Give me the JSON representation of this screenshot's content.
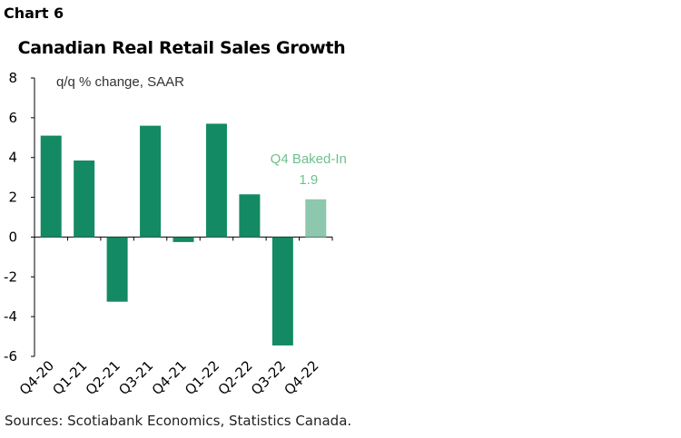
{
  "header": {
    "chart_label": "Chart 6"
  },
  "footer": {
    "source": "Sources: Scotiabank Economics, Statistics Canada."
  },
  "colors": {
    "bar": "#138A63",
    "baked_in_bar": "#8CC7AE",
    "baked_in_text": "#6FBF8E",
    "axis": "#000000"
  },
  "chart_data": {
    "type": "bar",
    "title": "Canadian Real Retail Sales Growth",
    "ylabel_note": "q/q % change, SAAR",
    "categories": [
      "Q4-20",
      "Q1-21",
      "Q2-21",
      "Q3-21",
      "Q4-21",
      "Q1-22",
      "Q2-22",
      "Q3-22",
      "Q4-22"
    ],
    "values": [
      5.1,
      3.85,
      -3.25,
      5.6,
      -0.25,
      5.7,
      2.15,
      -5.45,
      1.9
    ],
    "highlight": {
      "index": 8,
      "label": "Q4 Baked-In",
      "value_label": "1.9"
    },
    "ylim": [
      -6,
      8
    ],
    "yticks": [
      8,
      6,
      4,
      2,
      0,
      -2,
      -4,
      -6
    ],
    "grid": false,
    "legend": "none"
  }
}
